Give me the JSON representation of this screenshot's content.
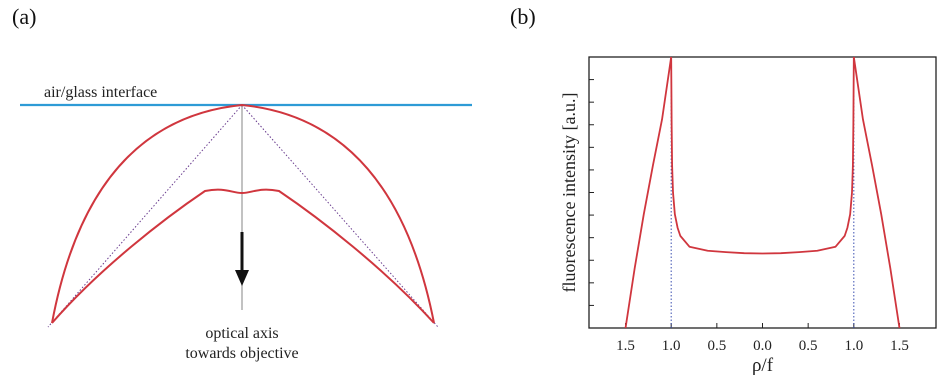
{
  "figure": {
    "panel_a": {
      "label": "(a)",
      "interface_label": "air/glass interface",
      "axis_label_line1": "optical axis",
      "axis_label_line2": "towards objective",
      "colors": {
        "interface": "#2e9bd6",
        "curve": "#d0363e",
        "guide": "#6a3d8f",
        "axis": "#9a9a9a",
        "arrow": "#111111"
      }
    },
    "panel_b": {
      "label": "(b)",
      "colors": {
        "curve": "#d0363e",
        "guide": "#3a4fb0",
        "frame": "#222222"
      }
    }
  },
  "chart_data": {
    "type": "line",
    "xlabel": "ρ/f",
    "ylabel": "fluorescence intensity [a.u.]",
    "x_tick_labels": [
      "1.5",
      "1.0",
      "0.5",
      "0.0",
      "0.5",
      "1.0",
      "1.5"
    ],
    "x_tick_values": [
      -1.5,
      -1.0,
      -0.5,
      0.0,
      0.5,
      1.0,
      1.5
    ],
    "xlim": [
      -1.9,
      1.9
    ],
    "ylim": [
      0,
      1
    ],
    "y_tick_labels": [],
    "grid": false,
    "series": [
      {
        "name": "",
        "points": [
          [
            -1.5,
            0.0
          ],
          [
            -1.4,
            0.22
          ],
          [
            -1.3,
            0.42
          ],
          [
            -1.2,
            0.6
          ],
          [
            -1.1,
            0.77
          ],
          [
            -1.0,
            1.0
          ],
          [
            -0.995,
            0.75
          ],
          [
            -0.99,
            0.6
          ],
          [
            -0.98,
            0.5
          ],
          [
            -0.96,
            0.42
          ],
          [
            -0.93,
            0.37
          ],
          [
            -0.9,
            0.34
          ],
          [
            -0.8,
            0.3
          ],
          [
            -0.6,
            0.285
          ],
          [
            -0.4,
            0.28
          ],
          [
            -0.2,
            0.276
          ],
          [
            0.0,
            0.275
          ],
          [
            0.2,
            0.276
          ],
          [
            0.4,
            0.28
          ],
          [
            0.6,
            0.285
          ],
          [
            0.8,
            0.3
          ],
          [
            0.9,
            0.34
          ],
          [
            0.93,
            0.37
          ],
          [
            0.96,
            0.42
          ],
          [
            0.98,
            0.5
          ],
          [
            0.99,
            0.6
          ],
          [
            0.995,
            0.75
          ],
          [
            1.0,
            1.0
          ],
          [
            1.1,
            0.77
          ],
          [
            1.2,
            0.6
          ],
          [
            1.3,
            0.42
          ],
          [
            1.4,
            0.22
          ],
          [
            1.5,
            0.0
          ]
        ]
      }
    ],
    "vertical_guides": [
      -1.0,
      1.0
    ]
  }
}
